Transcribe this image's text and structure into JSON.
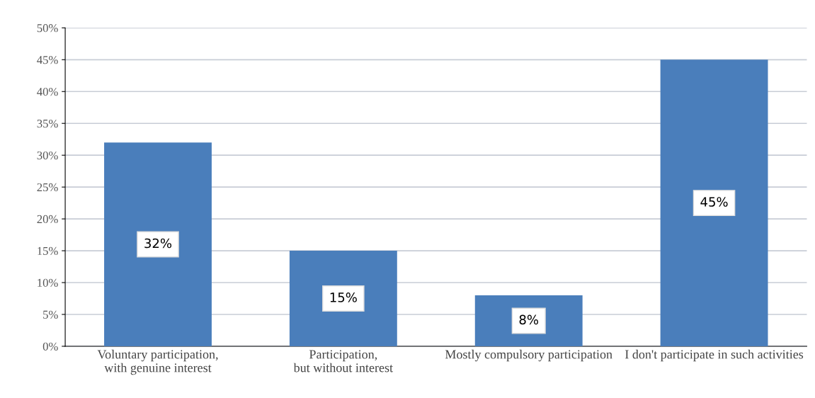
{
  "chart_data": {
    "type": "bar",
    "categories": [
      "Voluntary participation, with genuine interest",
      "Participation, but without interest",
      "Mostly compulsory participation",
      "I don't participate in such activities"
    ],
    "values": [
      32,
      15,
      8,
      45
    ],
    "value_labels": [
      "32%",
      "15%",
      "8%",
      "45%"
    ],
    "color": "#4a7ebb",
    "ylim": [
      0,
      50
    ],
    "yticks": [
      {
        "value": 0,
        "label": "0%"
      },
      {
        "value": 5,
        "label": "5%"
      },
      {
        "value": 10,
        "label": "10%"
      },
      {
        "value": 15,
        "label": "15%"
      },
      {
        "value": 20,
        "label": "20%"
      },
      {
        "value": 25,
        "label": "25%"
      },
      {
        "value": 30,
        "label": "30%"
      },
      {
        "value": 35,
        "label": "35%"
      },
      {
        "value": 40,
        "label": "40%"
      },
      {
        "value": 45,
        "label": "45%"
      },
      {
        "value": 50,
        "label": "50%"
      }
    ],
    "grid": "y"
  }
}
